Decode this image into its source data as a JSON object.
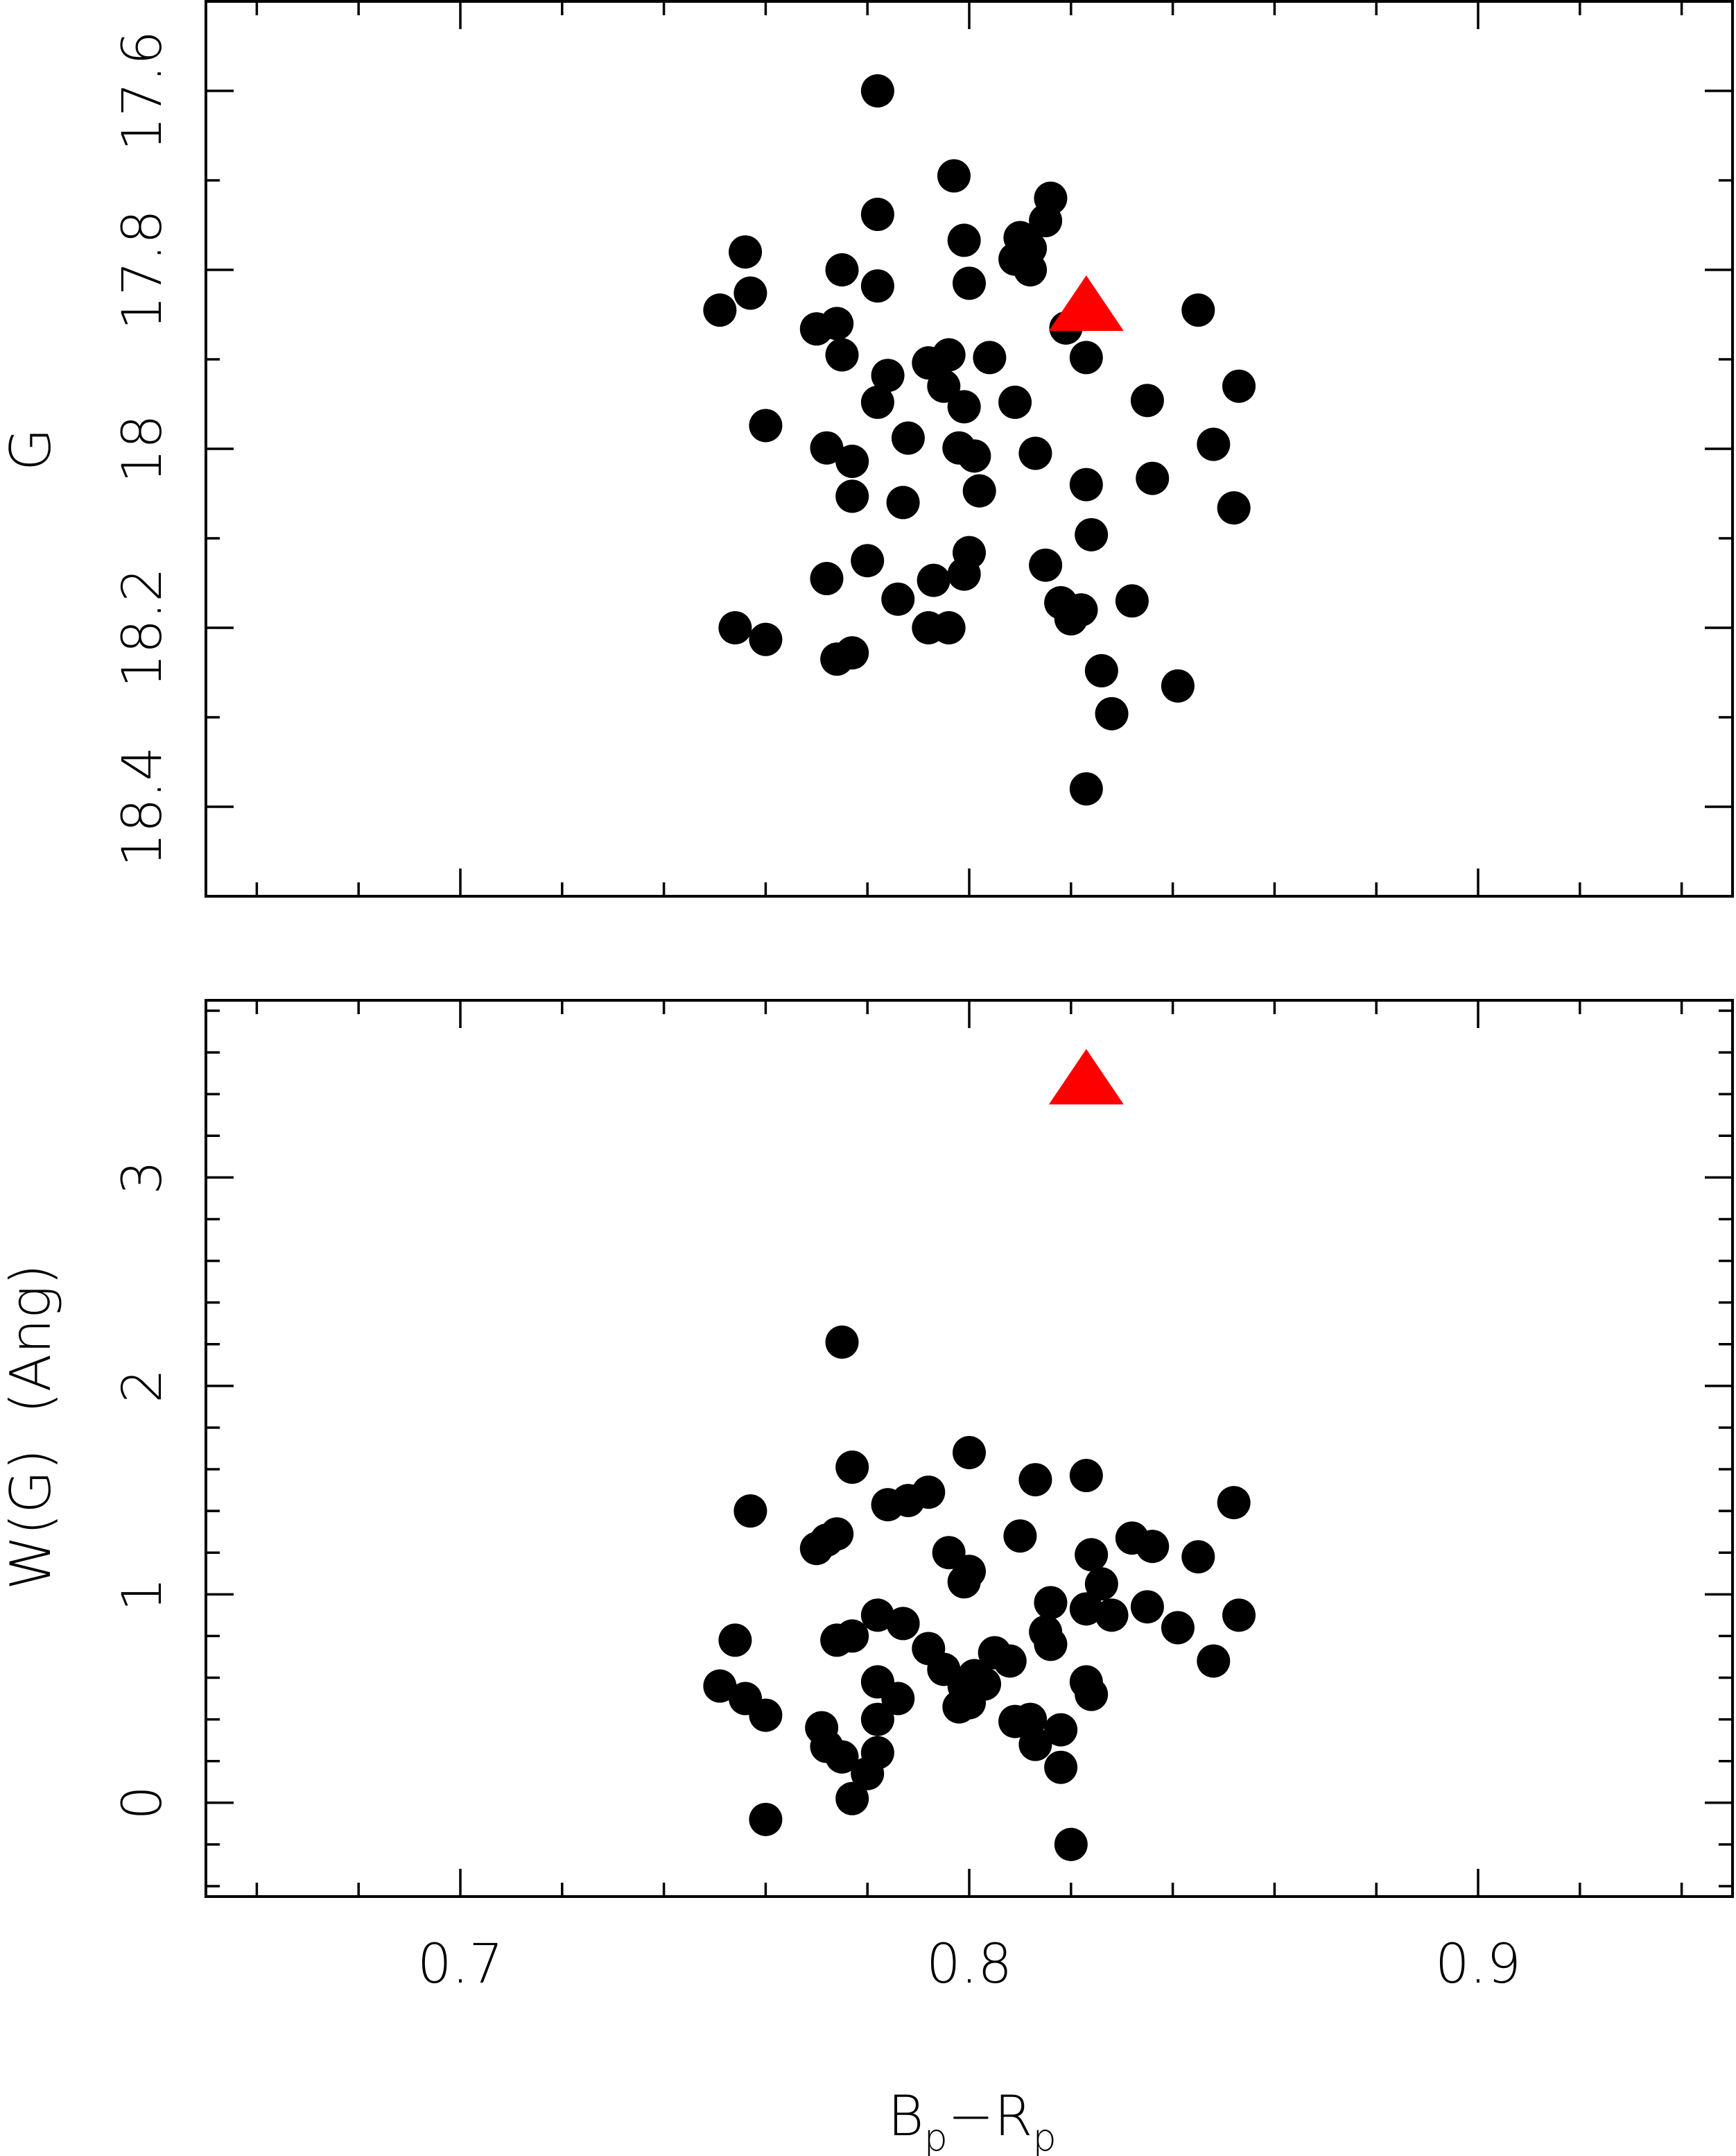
{
  "chart_data": [
    {
      "type": "scatter",
      "xlabel": "Bp−Rp",
      "xlabel_main": [
        "B",
        "−R"
      ],
      "xlabel_sub": "p",
      "ylabel": "G",
      "xlim": [
        0.65,
        0.95
      ],
      "ylim": [
        18.5,
        17.5
      ],
      "y_inverted": true,
      "x_ticks": [
        0.7,
        0.8,
        0.9
      ],
      "y_ticks": [
        "17.6",
        "17.8",
        "18",
        "18.2",
        "18.4"
      ],
      "y_tick_values": [
        17.6,
        17.8,
        18.0,
        18.2,
        18.4
      ],
      "series": [
        {
          "marker": "circle",
          "color": "#000000",
          "points": [
            [
              0.782,
              17.6
            ],
            [
              0.797,
              17.695
            ],
            [
              0.782,
              17.738
            ],
            [
              0.816,
              17.72
            ],
            [
              0.815,
              17.745
            ],
            [
              0.799,
              17.767
            ],
            [
              0.81,
              17.764
            ],
            [
              0.812,
              17.776
            ],
            [
              0.809,
              17.788
            ],
            [
              0.812,
              17.8
            ],
            [
              0.756,
              17.78
            ],
            [
              0.775,
              17.8
            ],
            [
              0.8,
              17.815
            ],
            [
              0.782,
              17.818
            ],
            [
              0.757,
              17.826
            ],
            [
              0.751,
              17.845
            ],
            [
              0.845,
              17.845
            ],
            [
              0.774,
              17.86
            ],
            [
              0.77,
              17.866
            ],
            [
              0.819,
              17.865
            ],
            [
              0.775,
              17.895
            ],
            [
              0.796,
              17.895
            ],
            [
              0.804,
              17.898
            ],
            [
              0.823,
              17.898
            ],
            [
              0.792,
              17.904
            ],
            [
              0.784,
              17.918
            ],
            [
              0.795,
              17.93
            ],
            [
              0.853,
              17.93
            ],
            [
              0.782,
              17.948
            ],
            [
              0.799,
              17.953
            ],
            [
              0.809,
              17.948
            ],
            [
              0.835,
              17.946
            ],
            [
              0.76,
              17.974
            ],
            [
              0.788,
              17.988
            ],
            [
              0.772,
              17.999
            ],
            [
              0.848,
              17.995
            ],
            [
              0.798,
              17.999
            ],
            [
              0.777,
              18.014
            ],
            [
              0.801,
              18.008
            ],
            [
              0.813,
              18.005
            ],
            [
              0.823,
              18.04
            ],
            [
              0.836,
              18.033
            ],
            [
              0.777,
              18.053
            ],
            [
              0.802,
              18.047
            ],
            [
              0.787,
              18.06
            ],
            [
              0.852,
              18.066
            ],
            [
              0.824,
              18.096
            ],
            [
              0.8,
              18.116
            ],
            [
              0.78,
              18.125
            ],
            [
              0.815,
              18.13
            ],
            [
              0.772,
              18.145
            ],
            [
              0.793,
              18.147
            ],
            [
              0.799,
              18.14
            ],
            [
              0.786,
              18.168
            ],
            [
              0.818,
              18.172
            ],
            [
              0.832,
              18.17
            ],
            [
              0.822,
              18.18
            ],
            [
              0.82,
              18.19
            ],
            [
              0.792,
              18.2
            ],
            [
              0.796,
              18.2
            ],
            [
              0.754,
              18.2
            ],
            [
              0.76,
              18.213
            ],
            [
              0.777,
              18.228
            ],
            [
              0.774,
              18.235
            ],
            [
              0.826,
              18.248
            ],
            [
              0.841,
              18.265
            ],
            [
              0.828,
              18.296
            ],
            [
              0.823,
              18.38
            ]
          ]
        },
        {
          "marker": "triangle",
          "color": "#ff0000",
          "points": [
            [
              0.823,
              17.845
            ]
          ]
        }
      ]
    },
    {
      "type": "scatter",
      "xlabel": "Bp−Rp",
      "ylabel": "W(G)  (Ang)",
      "xlim": [
        0.65,
        0.95
      ],
      "ylim": [
        -0.45,
        3.85
      ],
      "x_ticks": [
        "0.7",
        "0.8",
        "0.9"
      ],
      "x_tick_values": [
        0.7,
        0.8,
        0.9
      ],
      "y_ticks": [
        "0",
        "1",
        "2",
        "3"
      ],
      "y_tick_values": [
        0,
        1,
        2,
        3
      ],
      "series": [
        {
          "marker": "circle",
          "color": "#000000",
          "points": [
            [
              0.775,
              2.21
            ],
            [
              0.8,
              1.68
            ],
            [
              0.777,
              1.61
            ],
            [
              0.823,
              1.57
            ],
            [
              0.813,
              1.55
            ],
            [
              0.792,
              1.49
            ],
            [
              0.788,
              1.45
            ],
            [
              0.784,
              1.43
            ],
            [
              0.852,
              1.44
            ],
            [
              0.757,
              1.4
            ],
            [
              0.81,
              1.28
            ],
            [
              0.774,
              1.29
            ],
            [
              0.772,
              1.26
            ],
            [
              0.77,
              1.22
            ],
            [
              0.832,
              1.27
            ],
            [
              0.836,
              1.23
            ],
            [
              0.796,
              1.2
            ],
            [
              0.824,
              1.19
            ],
            [
              0.845,
              1.18
            ],
            [
              0.8,
              1.11
            ],
            [
              0.799,
              1.06
            ],
            [
              0.826,
              1.05
            ],
            [
              0.816,
              0.96
            ],
            [
              0.823,
              0.93
            ],
            [
              0.835,
              0.94
            ],
            [
              0.828,
              0.9
            ],
            [
              0.853,
              0.9
            ],
            [
              0.782,
              0.9
            ],
            [
              0.787,
              0.86
            ],
            [
              0.841,
              0.84
            ],
            [
              0.815,
              0.82
            ],
            [
              0.777,
              0.8
            ],
            [
              0.774,
              0.78
            ],
            [
              0.754,
              0.78
            ],
            [
              0.792,
              0.74
            ],
            [
              0.816,
              0.76
            ],
            [
              0.805,
              0.72
            ],
            [
              0.808,
              0.68
            ],
            [
              0.848,
              0.68
            ],
            [
              0.795,
              0.64
            ],
            [
              0.801,
              0.61
            ],
            [
              0.799,
              0.56
            ],
            [
              0.803,
              0.57
            ],
            [
              0.782,
              0.58
            ],
            [
              0.751,
              0.56
            ],
            [
              0.823,
              0.58
            ],
            [
              0.756,
              0.5
            ],
            [
              0.786,
              0.5
            ],
            [
              0.824,
              0.52
            ],
            [
              0.8,
              0.48
            ],
            [
              0.798,
              0.46
            ],
            [
              0.76,
              0.42
            ],
            [
              0.782,
              0.4
            ],
            [
              0.809,
              0.39
            ],
            [
              0.812,
              0.4
            ],
            [
              0.771,
              0.36
            ],
            [
              0.818,
              0.35
            ],
            [
              0.813,
              0.28
            ],
            [
              0.772,
              0.27
            ],
            [
              0.775,
              0.22
            ],
            [
              0.782,
              0.24
            ],
            [
              0.78,
              0.14
            ],
            [
              0.818,
              0.17
            ],
            [
              0.777,
              0.02
            ],
            [
              0.76,
              -0.08
            ],
            [
              0.82,
              -0.2
            ]
          ]
        },
        {
          "marker": "triangle",
          "color": "#ff0000",
          "points": [
            [
              0.823,
              3.45
            ]
          ]
        }
      ]
    }
  ]
}
